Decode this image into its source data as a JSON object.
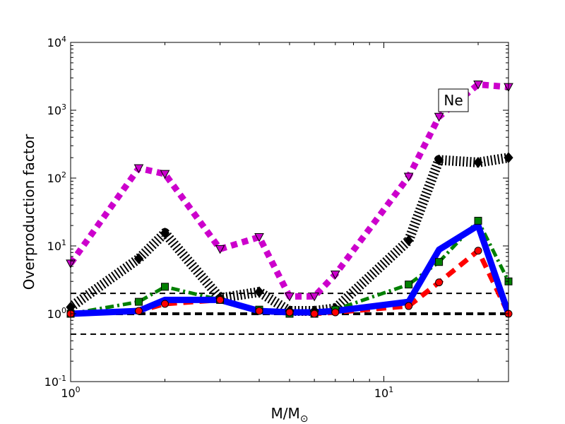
{
  "chart_data": {
    "type": "line",
    "title": "",
    "xlabel": "M/M",
    "xlabel_subscript": "⊙",
    "ylabel": "Overproduction factor",
    "xscale": "log",
    "yscale": "log",
    "xlim": [
      1,
      25
    ],
    "ylim": [
      0.1,
      10000
    ],
    "x_ticks": [
      {
        "value": 1,
        "base": "10",
        "exp": "0"
      },
      {
        "value": 10,
        "base": "10",
        "exp": "1"
      }
    ],
    "y_ticks": [
      {
        "value": 0.1,
        "base": "10",
        "exp": "-1"
      },
      {
        "value": 1,
        "base": "10",
        "exp": "0"
      },
      {
        "value": 10,
        "base": "10",
        "exp": "1"
      },
      {
        "value": 100,
        "base": "10",
        "exp": "2"
      },
      {
        "value": 1000,
        "base": "10",
        "exp": "3"
      },
      {
        "value": 10000,
        "base": "10",
        "exp": "4"
      }
    ],
    "annotation": {
      "text": "Ne",
      "x": 16.3,
      "y": 1400
    },
    "reference_lines": [
      {
        "y": 2.0,
        "style": "thin-dashed",
        "color": "#000000"
      },
      {
        "y": 1.0,
        "style": "thick-dashed",
        "color": "#000000"
      },
      {
        "y": 0.5,
        "style": "thin-dashed",
        "color": "#000000"
      }
    ],
    "x": [
      1,
      1.65,
      2,
      3,
      4,
      5,
      6,
      7,
      12,
      15,
      20,
      25
    ],
    "series": [
      {
        "name": "magenta",
        "color": "#cc00cc",
        "linestyle": "dotted",
        "marker": "triangle-down",
        "x": [
          1,
          1.65,
          2,
          3,
          4,
          5,
          6,
          7,
          12,
          15,
          20,
          25
        ],
        "values": [
          5.5,
          140,
          115,
          9,
          13.5,
          1.8,
          1.8,
          3.8,
          105,
          800,
          2400,
          2200
        ]
      },
      {
        "name": "black",
        "color": "#000000",
        "linestyle": "dotted",
        "marker": "diamond",
        "x": [
          1,
          1.65,
          2,
          3,
          4,
          5,
          6,
          7,
          12,
          15,
          20,
          25
        ],
        "values": [
          1.25,
          6.5,
          15.5,
          1.7,
          2.1,
          1.1,
          1.1,
          1.2,
          12,
          185,
          170,
          200
        ]
      },
      {
        "name": "green",
        "color": "#008000",
        "linestyle": "dashdot",
        "marker": "square",
        "x": [
          1,
          1.65,
          2,
          3,
          4,
          5,
          6,
          7,
          12,
          15,
          20,
          25
        ],
        "values": [
          1.0,
          1.5,
          2.5,
          1.6,
          1.15,
          1.0,
          1.0,
          1.15,
          2.7,
          5.8,
          23.5,
          3.0
        ]
      },
      {
        "name": "red",
        "color": "#ff0000",
        "linestyle": "dashed",
        "marker": "circle",
        "x": [
          1,
          1.65,
          2,
          3,
          4,
          5,
          6,
          7,
          12,
          15,
          20,
          25
        ],
        "values": [
          1.0,
          1.1,
          1.4,
          1.6,
          1.1,
          1.05,
          1.0,
          1.05,
          1.3,
          2.9,
          8.5,
          1.0
        ]
      },
      {
        "name": "blue",
        "color": "#0000ff",
        "linestyle": "solid",
        "marker": "none",
        "x": [
          1,
          1.65,
          2,
          3,
          4,
          5,
          6,
          7,
          12,
          15,
          20,
          25
        ],
        "values": [
          1.0,
          1.1,
          1.6,
          1.6,
          1.1,
          1.05,
          1.05,
          1.1,
          1.5,
          8.8,
          20,
          1.0
        ]
      }
    ]
  }
}
